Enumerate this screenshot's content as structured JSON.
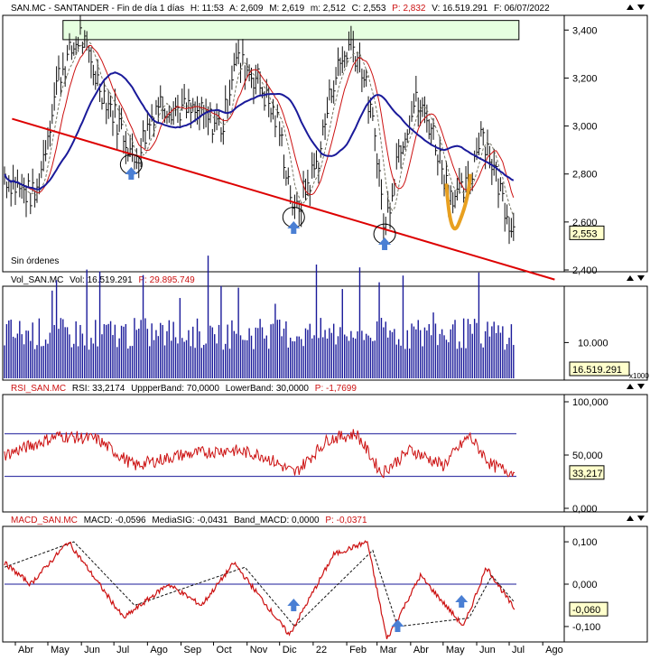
{
  "colors": {
    "price": "#111111",
    "ma_fast": "#cc1111",
    "ma_mid": "#777766",
    "ma_slow": "#1a1a9a",
    "trend": "#dd0000",
    "volume": "#1a1a9a",
    "rsi": "#cc1111",
    "rsi_bands": "#1a1a9a",
    "macd": "#cc1111",
    "macd_signal": "#111111",
    "zero": "#1a1a9a",
    "highlight_box": "#e6ffe0",
    "arrow": "#4a7fd4",
    "u_shape": "#e8a020"
  },
  "header": {
    "price": "SAN.MC - SANTANDER - Fin de día 1 días",
    "h": "H: 11:53",
    "a": "A: 2,609",
    "m": "M: 2,619",
    "mn": "m: 2,512",
    "c": "C: 2,553",
    "p": "P: 2,832",
    "v": "V: 16.519.291",
    "f": "F: 06/07/2022"
  },
  "price_panel": {
    "status": "Sin órdenes",
    "last_label": "2,553",
    "ticks": [
      "3,400",
      "3,200",
      "3,000",
      "2,800",
      "2,600",
      "2,400"
    ]
  },
  "volume_panel": {
    "title": "Vol_SAN.MC",
    "vol": "Vol: 16.519.291",
    "p": "P: 29.895.749",
    "ticks": [
      "10.000"
    ],
    "last_label": "16.519.291",
    "unit_label": "x1000"
  },
  "rsi_panel": {
    "title": "RSI_SAN.MC",
    "rsi": "RSI: 33,2174",
    "upper": "UppperBand: 70,0000",
    "lower": "LowerBand: 30,0000",
    "p": "P: -1,7699",
    "ticks": [
      "100,000",
      "50,000",
      "0,000"
    ],
    "last_label": "33,217"
  },
  "macd_panel": {
    "title": "MACD_SAN.MC",
    "macd": "MACD: -0,0596",
    "signal": "MediaSIG: -0,0431",
    "band": "Band_MACD: 0,0000",
    "p": "P: -0,0371",
    "ticks": [
      "0,100",
      "0,000",
      "-0,100"
    ],
    "last_label": "-0,060"
  },
  "x_axis": {
    "months": [
      "Abr",
      "May",
      "Jun",
      "Jul",
      "Ago",
      "Sep",
      "Oct",
      "Nov",
      "Dic",
      "22",
      "Feb",
      "Mar",
      "Abr",
      "May",
      "Jun",
      "Jul",
      "Ago"
    ]
  },
  "chart_data": [
    {
      "type": "line",
      "name": "price",
      "title": "SAN.MC - SANTANDER - Fin de día 1 días",
      "ylim": [
        2.4,
        3.45
      ],
      "x": [
        "2021-03-22",
        "2021-04-01",
        "2021-04-20",
        "2021-05-10",
        "2021-05-31",
        "2021-06-15",
        "2021-07-12",
        "2021-07-20",
        "2021-08-10",
        "2021-09-15",
        "2021-10-10",
        "2021-10-20",
        "2021-11-10",
        "2021-11-30",
        "2021-12-15",
        "2022-01-05",
        "2022-01-20",
        "2022-02-05",
        "2022-02-15",
        "2022-03-01",
        "2022-03-08",
        "2022-03-20",
        "2022-04-05",
        "2022-04-20",
        "2022-05-05",
        "2022-05-15",
        "2022-05-25",
        "2022-06-05",
        "2022-06-15",
        "2022-06-25",
        "2022-07-06"
      ],
      "y": [
        2.8,
        2.75,
        2.7,
        3.2,
        3.38,
        3.2,
        2.95,
        2.85,
        3.1,
        3.05,
        3.0,
        3.28,
        3.2,
        3.0,
        2.63,
        2.85,
        3.2,
        3.35,
        3.25,
        2.9,
        2.55,
        2.9,
        3.1,
        3.0,
        2.75,
        2.7,
        2.75,
        3.0,
        2.85,
        2.7,
        2.553
      ],
      "trendline": {
        "x": [
          "2021-03-29",
          "2022-08-12"
        ],
        "y": [
          3.03,
          2.36
        ]
      },
      "highlight_band": {
        "y": [
          3.36,
          3.44
        ]
      }
    },
    {
      "type": "bar",
      "name": "volume",
      "ylim": [
        0,
        25000
      ],
      "unit": "x1000",
      "last": 16519.291
    },
    {
      "type": "line",
      "name": "RSI",
      "ylim": [
        0,
        100
      ],
      "bands": [
        70,
        30
      ],
      "x": [
        "2021-03-22",
        "2021-05-10",
        "2021-06-15",
        "2021-07-20",
        "2021-09-01",
        "2021-10-15",
        "2021-11-15",
        "2021-12-15",
        "2022-01-15",
        "2022-02-10",
        "2022-03-05",
        "2022-04-01",
        "2022-05-01",
        "2022-05-25",
        "2022-06-15",
        "2022-07-06"
      ],
      "y": [
        50,
        68,
        65,
        40,
        50,
        55,
        50,
        33,
        65,
        70,
        33,
        55,
        40,
        68,
        40,
        33.2174
      ]
    },
    {
      "type": "line",
      "name": "MACD",
      "ylim": [
        -0.13,
        0.13
      ],
      "x": [
        "2021-03-22",
        "2021-04-15",
        "2021-05-20",
        "2021-07-10",
        "2021-08-20",
        "2021-09-20",
        "2021-10-20",
        "2021-12-10",
        "2022-01-20",
        "2022-02-20",
        "2022-03-10",
        "2022-04-10",
        "2022-05-20",
        "2022-06-10",
        "2022-07-06"
      ],
      "y": [
        0.05,
        0.0,
        0.1,
        -0.08,
        0.0,
        -0.05,
        0.05,
        -0.12,
        0.07,
        0.1,
        -0.13,
        0.02,
        -0.1,
        0.04,
        -0.0596
      ],
      "signal": {
        "x": [
          "2021-03-22",
          "2021-05-25",
          "2021-07-20",
          "2021-10-30",
          "2021-12-15",
          "2022-02-25",
          "2022-03-20",
          "2022-05-25",
          "2022-06-15",
          "2022-07-06"
        ],
        "y": [
          0.04,
          0.1,
          -0.05,
          0.04,
          -0.1,
          0.08,
          -0.1,
          -0.08,
          0.02,
          -0.0431
        ]
      }
    }
  ]
}
